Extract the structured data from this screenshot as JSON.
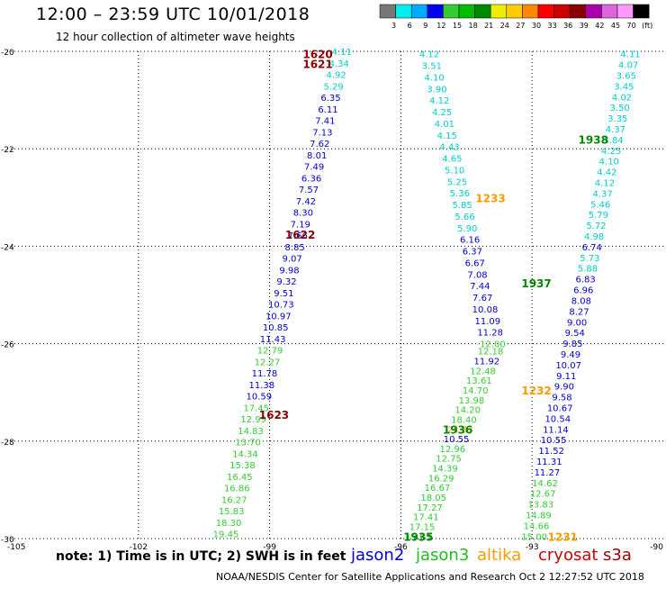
{
  "title": "12:00 – 23:59 UTC 10/01/2018",
  "subtitle": "12 hour collection of altimeter wave heights",
  "note": "note: 1) Time is in UTC; 2) SWH is in feet",
  "credit": "NOAA/NESDIS Center for Satellite Applications and Research   Oct  2 12:27:52 UTC 2018",
  "satellites": [
    {
      "name": "jason2",
      "color": "#0000cc"
    },
    {
      "name": "jason3",
      "color": "#22bb22"
    },
    {
      "name": "altika",
      "color": "#ff9900"
    },
    {
      "name": "cryosat",
      "color": "#cc0000"
    },
    {
      "name": "s3a",
      "color": "#990000"
    }
  ],
  "colorbar": {
    "labels": [
      "3",
      "6",
      "9",
      "12",
      "15",
      "18",
      "21",
      "24",
      "27",
      "30",
      "33",
      "36",
      "39",
      "42",
      "45",
      "70",
      "(ft)"
    ],
    "colors": [
      "#777777",
      "#00eeee",
      "#00aaff",
      "#0000ee",
      "#33cc33",
      "#00bb00",
      "#008800",
      "#eeee00",
      "#ffcc00",
      "#ff8800",
      "#ff0000",
      "#cc0000",
      "#880000",
      "#aa00aa",
      "#dd66dd",
      "#ff99ff",
      "#000000"
    ]
  },
  "chart_data": {
    "type": "scatter",
    "xlim": [
      -105,
      -90
    ],
    "ylim": [
      -30,
      -20
    ],
    "xticks": [
      "-105",
      "-102",
      "-99",
      "-96",
      "-93",
      "-90"
    ],
    "yticks": [
      "-20",
      "-22",
      "-24",
      "-26",
      "-28",
      "-30"
    ],
    "grid": true,
    "color_scale_ft": [
      [
        6,
        "#00cccc"
      ],
      [
        12,
        "#0000cc"
      ],
      [
        21,
        "#33cc33"
      ],
      [
        24,
        "#33cc33"
      ],
      [
        27,
        "#ff9900"
      ]
    ],
    "labels": [
      {
        "lon": -97.9,
        "lat": -20.05,
        "text": "1620",
        "color": "#880000"
      },
      {
        "lon": -97.9,
        "lat": -20.25,
        "text": "1621",
        "color": "#880000"
      },
      {
        "lon": -98.3,
        "lat": -23.75,
        "text": "1622",
        "color": "#880000"
      },
      {
        "lon": -98.9,
        "lat": -27.45,
        "text": "1623",
        "color": "#880000"
      },
      {
        "lon": -93.95,
        "lat": -23.0,
        "text": "1233",
        "color": "#ff9900"
      },
      {
        "lon": -92.9,
        "lat": -26.95,
        "text": "1232",
        "color": "#ff9900"
      },
      {
        "lon": -92.3,
        "lat": -29.95,
        "text": "1231",
        "color": "#ff9900"
      },
      {
        "lon": -91.6,
        "lat": -21.8,
        "text": "1938",
        "color": "#008800"
      },
      {
        "lon": -92.9,
        "lat": -24.75,
        "text": "1937",
        "color": "#008800"
      },
      {
        "lon": -94.7,
        "lat": -27.75,
        "text": "1936",
        "color": "#008800"
      },
      {
        "lon": -95.6,
        "lat": -29.95,
        "text": "1935",
        "color": "#008800"
      }
    ],
    "tracks": [
      {
        "name": "cryosat",
        "lon_start": -97.35,
        "lon_end": -100.0,
        "lat_start": -20.0,
        "lat_end": -29.9,
        "values": [
          "4.11",
          "4.34",
          "4.92",
          "5.29",
          "6.35",
          "6.11",
          "7.41",
          "7.13",
          "7.62",
          "8.01",
          "7.49",
          "6.36",
          "7.57",
          "7.42",
          "8.30",
          "7.19",
          "7.66",
          "8.85",
          "9.07",
          "9.98",
          "9.32",
          "9.51",
          "10.73",
          "10.97",
          "10.85",
          "11.43",
          "12.79",
          "12.27",
          "11.78",
          "11.38",
          "10.59",
          "17.45",
          "12.99",
          "14.83",
          "13.70",
          "14.34",
          "15.38",
          "16.45",
          "16.86",
          "16.27",
          "15.83",
          "18.30",
          "19.45"
        ]
      },
      {
        "name": "jason3-north",
        "lon_start": -95.35,
        "lon_end": -93.9,
        "lat_start": -20.05,
        "lat_end": -26.0,
        "values": [
          "4.12",
          "3.51",
          "4.10",
          "3.90",
          "4.12",
          "4.25",
          "4.01",
          "4.15",
          "4.43",
          "4.65",
          "5.10",
          "5.25",
          "5.36",
          "5.85",
          "5.66",
          "5.90",
          "6.16",
          "6.37",
          "6.67",
          "7.08",
          "7.44",
          "7.67",
          "10.08",
          "11.09",
          "11.28",
          "12.00"
        ]
      },
      {
        "name": "jason3-south",
        "lon_start": -93.95,
        "lon_end": -95.6,
        "lat_start": -26.15,
        "lat_end": -29.95,
        "values": [
          "12.18",
          "11.92",
          "12.48",
          "13.61",
          "14.70",
          "13.98",
          "14.20",
          "18.40",
          "24.83",
          "10.55",
          "12.96",
          "12.75",
          "14.39",
          "16.29",
          "16.67",
          "18.05",
          "17.27",
          "17.41",
          "17.15",
          "15.83"
        ]
      },
      {
        "name": "jason2",
        "lon_start": -90.75,
        "lon_end": -92.95,
        "lat_start": -20.05,
        "lat_end": -29.95,
        "values": [
          "4.11",
          "4.07",
          "3.65",
          "3.45",
          "4.02",
          "3.50",
          "3.35",
          "4.37",
          "3.84",
          "4.25",
          "4.10",
          "4.42",
          "4.12",
          "4.37",
          "5.46",
          "5.79",
          "5.72",
          "4.98",
          "6.74",
          "5.73",
          "5.88",
          "6.83",
          "6.96",
          "8.08",
          "8.27",
          "9.00",
          "9.54",
          "9.85",
          "9.49",
          "10.07",
          "9.11",
          "9.90",
          "9.58",
          "10.67",
          "10.54",
          "11.14",
          "10.55",
          "11.52",
          "11.31",
          "11.27",
          "14.62",
          "12.67",
          "13.83",
          "14.89",
          "14.66",
          "15.00"
        ]
      }
    ]
  }
}
